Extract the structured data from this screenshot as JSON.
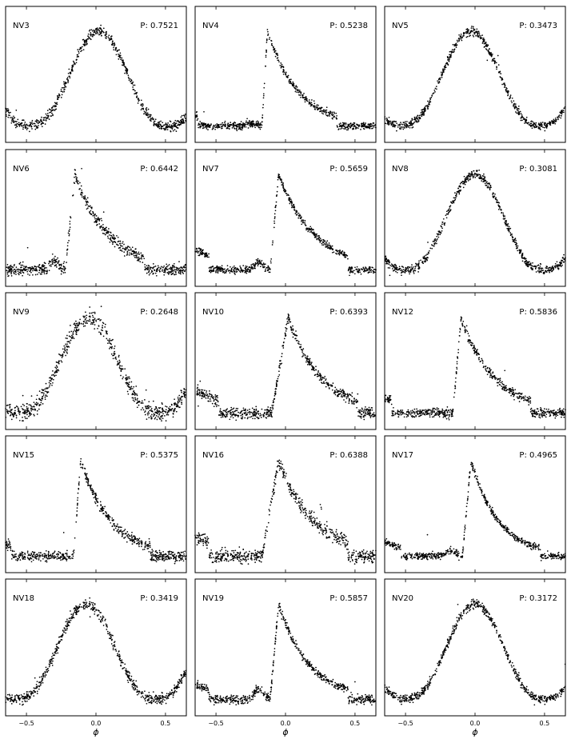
{
  "figure": {
    "xlabel": "ϕ"
  },
  "chart_data": [
    {
      "type": "scatter",
      "title": "NV3",
      "period": "P: 0.7521",
      "shape": "sine",
      "peak": 0.02,
      "low": 0.6,
      "noise": 0.25,
      "xlim": [
        -0.65,
        0.65
      ],
      "xticks": [
        "−0.5",
        "0.0",
        "0.5"
      ],
      "grid": false
    },
    {
      "type": "scatter",
      "title": "NV4",
      "period": "P: 0.5238",
      "shape": "rrab",
      "peak": -0.13,
      "rise": 0.04,
      "decay": 0.22,
      "low": 0.12,
      "bump": 0.03,
      "noise": 0.12,
      "xlim": [
        -0.65,
        0.65
      ],
      "xticks": [
        "−0.5",
        "0.0",
        "0.5"
      ],
      "grid": false
    },
    {
      "type": "scatter",
      "title": "NV5",
      "period": "P: 0.3473",
      "shape": "sine",
      "peak": -0.03,
      "low": 0.7,
      "noise": 0.18,
      "xlim": [
        -0.65,
        0.65
      ],
      "xticks": [
        "−0.5",
        "0.0",
        "0.5"
      ],
      "grid": false
    },
    {
      "type": "scatter",
      "title": "NV6",
      "period": "P: 0.6442",
      "shape": "rrab",
      "peak": -0.15,
      "rise": 0.07,
      "decay": 0.24,
      "low": 0.3,
      "bump": 0.1,
      "noise": 0.3,
      "xlim": [
        -0.65,
        0.65
      ],
      "xticks": [
        "−0.5",
        "0.0",
        "0.5"
      ],
      "grid": false
    },
    {
      "type": "scatter",
      "title": "NV7",
      "period": "P: 0.5659",
      "shape": "rrab",
      "peak": -0.05,
      "rise": 0.06,
      "decay": 0.26,
      "low": 0.18,
      "bump": 0.08,
      "noise": 0.12,
      "xlim": [
        -0.65,
        0.65
      ],
      "xticks": [
        "−0.5",
        "0.0",
        "0.5"
      ],
      "grid": false
    },
    {
      "type": "scatter",
      "title": "NV8",
      "period": "P: 0.3081",
      "shape": "sine",
      "peak": 0.0,
      "low": 0.65,
      "noise": 0.18,
      "xlim": [
        -0.65,
        0.65
      ],
      "xticks": [
        "−0.5",
        "0.0",
        "0.5"
      ],
      "grid": false
    },
    {
      "type": "scatter",
      "title": "NV9",
      "period": "P: 0.2648",
      "shape": "sine",
      "peak": -0.05,
      "low": 0.45,
      "noise": 0.55,
      "xlim": [
        -0.65,
        0.65
      ],
      "xticks": [
        "−0.5",
        "0.0",
        "0.5"
      ],
      "grid": false
    },
    {
      "type": "scatter",
      "title": "NV10",
      "period": "P: 0.6393",
      "shape": "rrab",
      "peak": 0.02,
      "rise": 0.12,
      "decay": 0.24,
      "low": 0.35,
      "bump": 0.0,
      "noise": 0.3,
      "xlim": [
        -0.65,
        0.65
      ],
      "xticks": [
        "−0.5",
        "0.0",
        "0.5"
      ],
      "grid": false
    },
    {
      "type": "scatter",
      "title": "NV12",
      "period": "P: 0.5836",
      "shape": "rrab",
      "peak": -0.1,
      "rise": 0.06,
      "decay": 0.24,
      "low": 0.28,
      "bump": 0.0,
      "noise": 0.22,
      "xlim": [
        -0.65,
        0.65
      ],
      "xticks": [
        "−0.5",
        "0.0",
        "0.5"
      ],
      "grid": false
    },
    {
      "type": "scatter",
      "title": "NV15",
      "period": "P: 0.5375",
      "shape": "rrab",
      "peak": -0.11,
      "rise": 0.05,
      "decay": 0.22,
      "low": 0.25,
      "bump": 0.0,
      "noise": 0.24,
      "xlim": [
        -0.65,
        0.65
      ],
      "xticks": [
        "−0.5",
        "0.0",
        "0.5"
      ],
      "grid": false
    },
    {
      "type": "scatter",
      "title": "NV16",
      "period": "P: 0.6388",
      "shape": "rrab",
      "peak": -0.05,
      "rise": 0.12,
      "decay": 0.26,
      "low": 0.35,
      "bump": 0.0,
      "noise": 0.4,
      "xlim": [
        -0.65,
        0.65
      ],
      "xticks": [
        "−0.5",
        "0.0",
        "0.5"
      ],
      "grid": false
    },
    {
      "type": "scatter",
      "title": "NV17",
      "period": "P: 0.4965",
      "shape": "rrab",
      "peak": -0.03,
      "rise": 0.06,
      "decay": 0.2,
      "low": 0.18,
      "bump": 0.06,
      "noise": 0.1,
      "xlim": [
        -0.65,
        0.65
      ],
      "xticks": [
        "−0.5",
        "0.0",
        "0.5"
      ],
      "grid": false
    },
    {
      "type": "scatter",
      "title": "NV18",
      "period": "P: 0.3419",
      "shape": "sine",
      "peak": -0.07,
      "low": 0.6,
      "noise": 0.28,
      "xlim": [
        -0.65,
        0.65
      ],
      "xticks": [
        "−0.5",
        "0.0",
        "0.5"
      ],
      "grid": false
    },
    {
      "type": "scatter",
      "title": "NV19",
      "period": "P: 0.5857",
      "shape": "rrab",
      "peak": -0.05,
      "rise": 0.06,
      "decay": 0.22,
      "low": 0.2,
      "bump": 0.12,
      "noise": 0.18,
      "xlim": [
        -0.65,
        0.65
      ],
      "xticks": [
        "−0.5",
        "0.0",
        "0.5"
      ],
      "grid": false
    },
    {
      "type": "scatter",
      "title": "NV20",
      "period": "P: 0.3172",
      "shape": "sine",
      "peak": 0.0,
      "low": 0.6,
      "noise": 0.18,
      "xlim": [
        -0.65,
        0.65
      ],
      "xticks": [
        "−0.5",
        "0.0",
        "0.5"
      ],
      "grid": false
    }
  ]
}
